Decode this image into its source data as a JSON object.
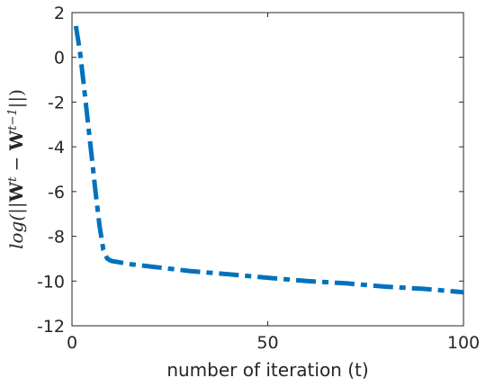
{
  "chart_data": {
    "type": "line",
    "title": "",
    "xlabel": "number of iteration (t)",
    "ylabel": "log(||W^t − W^{t−1}||)",
    "ylabel_parts": {
      "prefix": "log(||",
      "w1": "W",
      "sup1": "t",
      "minus": " − ",
      "w2": "W",
      "sup2": "t−1",
      "suffix": "||)"
    },
    "xlim": [
      0,
      100
    ],
    "ylim": [
      -12,
      2
    ],
    "xticks": [
      0,
      50,
      100
    ],
    "yticks": [
      2,
      0,
      -2,
      -4,
      -6,
      -8,
      -10,
      -12
    ],
    "xtick_labels": [
      "0",
      "50",
      "100"
    ],
    "ytick_labels": [
      "2",
      "0",
      "-2",
      "-4",
      "-6",
      "-8",
      "-10",
      "-12"
    ],
    "grid": false,
    "series": [
      {
        "color": "#0072BD",
        "line_style": "dash-dot",
        "x": [
          1,
          2,
          3,
          4,
          5,
          6,
          7,
          8,
          9,
          10,
          15,
          20,
          30,
          40,
          50,
          60,
          70,
          80,
          90,
          100
        ],
        "y": [
          1.4,
          0.3,
          -1.2,
          -2.8,
          -4.4,
          -6.0,
          -7.5,
          -8.6,
          -9.0,
          -9.1,
          -9.25,
          -9.35,
          -9.55,
          -9.7,
          -9.85,
          -10.0,
          -10.1,
          -10.25,
          -10.35,
          -10.5
        ]
      }
    ]
  }
}
